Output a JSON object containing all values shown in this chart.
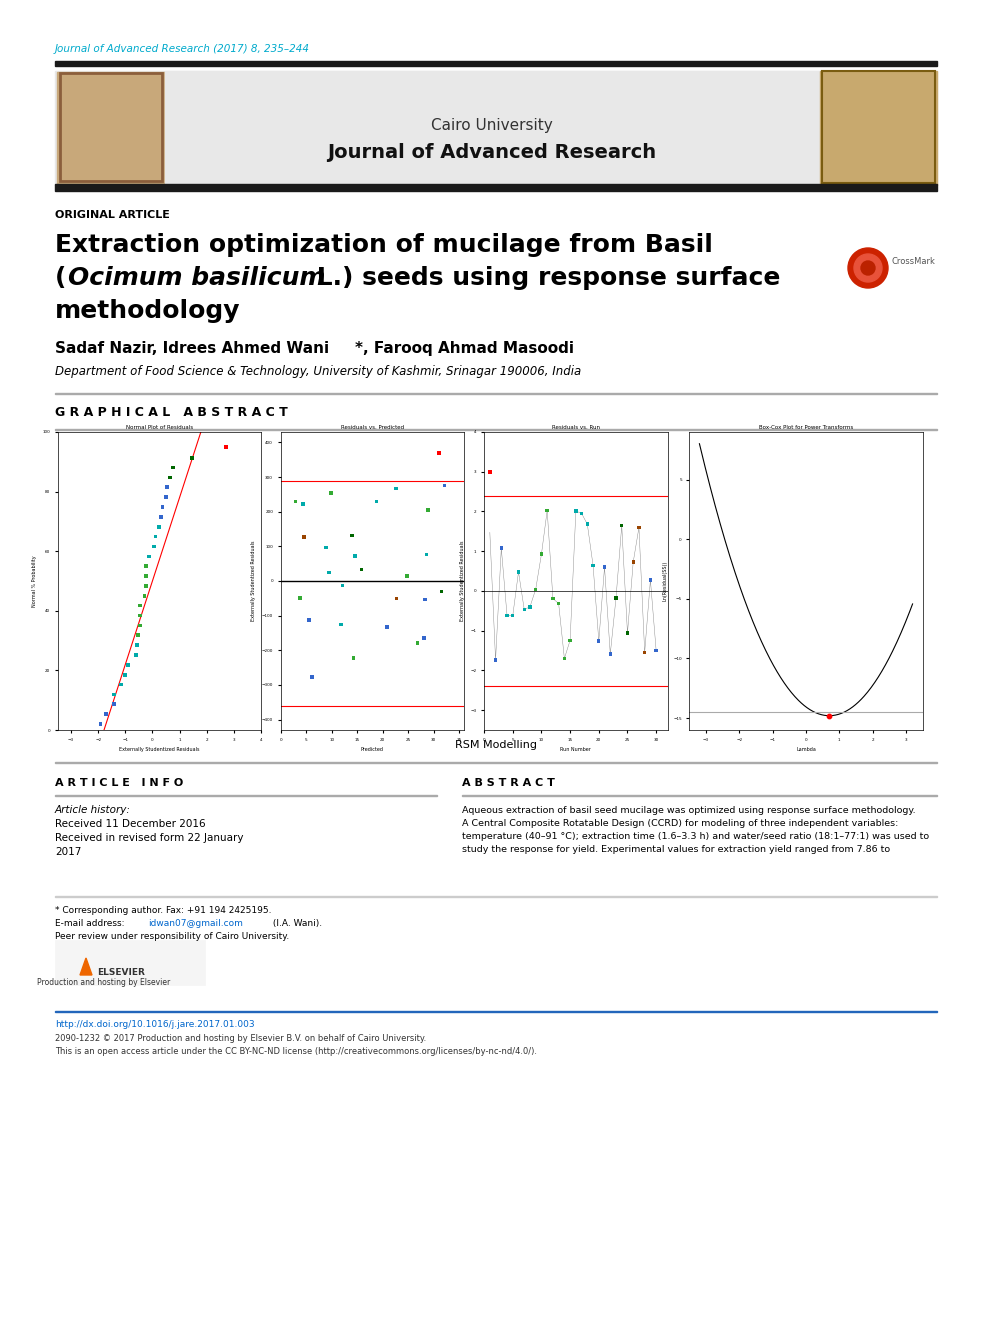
{
  "page_bg": "#ffffff",
  "header_journal_text": "Journal of Advanced Research (2017) 8, 235–244",
  "header_journal_color": "#00aacc",
  "header_bar_color": "#1a1a1a",
  "header_bg_color": "#e8e8e8",
  "cairo_text": "Cairo University",
  "journal_title_header": "Journal of Advanced Research",
  "original_article": "ORIGINAL ARTICLE",
  "paper_title_line1": "Extraction optimization of mucilage from Basil",
  "paper_title_line2_open": "(",
  "paper_title_line2_italic": "Ocimum basilicum",
  "paper_title_line2_normal": " L.) seeds using response surface",
  "paper_title_line3": "methodology",
  "authors": "Sadaf Nazir, Idrees Ahmed Wani",
  "authors_suffix": "*, Farooq Ahmad Masoodi",
  "affiliation": "Department of Food Science & Technology, University of Kashmir, Srinagar 190006, India",
  "graphical_abstract_label": "G R A P H I C A L   A B S T R A C T",
  "rsm_label": "RSM Modelling",
  "article_info_title": "A R T I C L E   I N F O",
  "article_history_label": "Article history:",
  "received_line1": "Received 11 December 2016",
  "received_line2": "Received in revised form 22 January",
  "received_line3": "2017",
  "abstract_title": "A B S T R A C T",
  "abs_line1": "Aqueous extraction of basil seed mucilage was optimized using response surface methodology.",
  "abs_line2": "A Central Composite Rotatable Design (CCRD) for modeling of three independent variables:",
  "abs_line3": "temperature (40–91 °C); extraction time (1.6–3.3 h) and water/seed ratio (18:1–77:1) was used to",
  "abs_line4": "study the response for yield. Experimental values for extraction yield ranged from 7.86 to",
  "footer_author_note": "* Corresponding author. Fax: +91 194 2425195.",
  "footer_email_prefix": "E-mail address: ",
  "footer_email_link": "idwan07@gmail.com",
  "footer_email_suffix": " (I.A. Wani).",
  "footer_peer_review": "Peer review under responsibility of Cairo University.",
  "footer_doi": "http://dx.doi.org/10.1016/j.jare.2017.01.003",
  "footer_copyright": "2090-1232 © 2017 Production and hosting by Elsevier B.V. on behalf of Cairo University.",
  "footer_license": "This is an open access article under the CC BY-NC-ND license (http://creativecommons.org/licenses/by-nc-nd/4.0/).",
  "elsevier_label": "Production and hosting by Elsevier"
}
